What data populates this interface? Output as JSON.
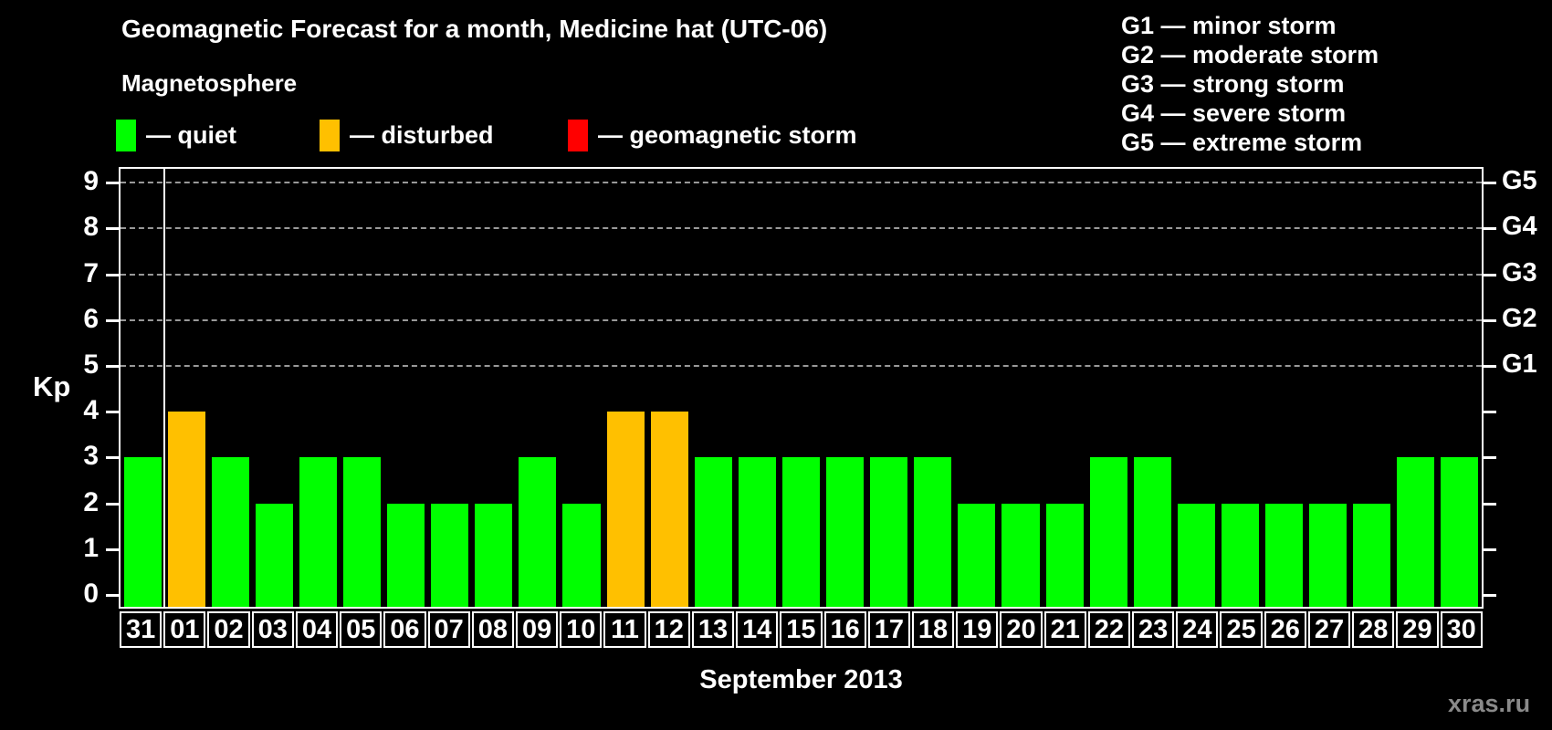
{
  "title": "Geomagnetic Forecast for a month, Medicine hat (UTC-06)",
  "subtitle": "Magnetosphere",
  "legend": {
    "quiet": "— quiet",
    "disturbed": "— disturbed",
    "storm": "— geomagnetic storm"
  },
  "g_scale_legend": [
    "G1 — minor storm",
    "G2 — moderate storm",
    "G3 — strong storm",
    "G4 — severe storm",
    "G5 — extreme storm"
  ],
  "kp_axis_label": "Kp",
  "month_label": "September 2013",
  "watermark": "xras.ru",
  "colors": {
    "quiet": "#00ff00",
    "disturbed": "#ffc000",
    "storm": "#ff0000",
    "background": "#000000",
    "grid": "#999999",
    "axis": "#ffffff"
  },
  "chart_data": {
    "type": "bar",
    "title": "Geomagnetic Forecast for a month, Medicine hat (UTC-06)",
    "subtitle": "Magnetosphere",
    "xlabel": "September 2013",
    "ylabel": "Kp",
    "ylim": [
      0,
      9.3
    ],
    "y_ticks": [
      0,
      1,
      2,
      3,
      4,
      5,
      6,
      7,
      8,
      9
    ],
    "grid": "horizontal dashed lines at Kp 5,6,7,8,9 (storm levels G1-G5)",
    "legend_position": "top-left and top-right",
    "categories": [
      "31",
      "01",
      "02",
      "03",
      "04",
      "05",
      "06",
      "07",
      "08",
      "09",
      "10",
      "11",
      "12",
      "13",
      "14",
      "15",
      "16",
      "17",
      "18",
      "19",
      "20",
      "21",
      "22",
      "23",
      "24",
      "25",
      "26",
      "27",
      "28",
      "29",
      "30"
    ],
    "values": [
      3,
      4,
      3,
      2,
      3,
      3,
      2,
      2,
      2,
      3,
      2,
      4,
      4,
      3,
      3,
      3,
      3,
      3,
      3,
      2,
      2,
      2,
      3,
      3,
      2,
      2,
      2,
      2,
      2,
      3,
      3
    ],
    "conditions": [
      "quiet",
      "disturbed",
      "quiet",
      "quiet",
      "quiet",
      "quiet",
      "quiet",
      "quiet",
      "quiet",
      "quiet",
      "quiet",
      "disturbed",
      "disturbed",
      "quiet",
      "quiet",
      "quiet",
      "quiet",
      "quiet",
      "quiet",
      "quiet",
      "quiet",
      "quiet",
      "quiet",
      "quiet",
      "quiet",
      "quiet",
      "quiet",
      "quiet",
      "quiet",
      "quiet",
      "quiet"
    ],
    "month_separator_after_index": 0,
    "right_axis_labels": [
      {
        "kp": 5,
        "label": "G1"
      },
      {
        "kp": 6,
        "label": "G2"
      },
      {
        "kp": 7,
        "label": "G3"
      },
      {
        "kp": 8,
        "label": "G4"
      },
      {
        "kp": 9,
        "label": "G5"
      }
    ]
  }
}
